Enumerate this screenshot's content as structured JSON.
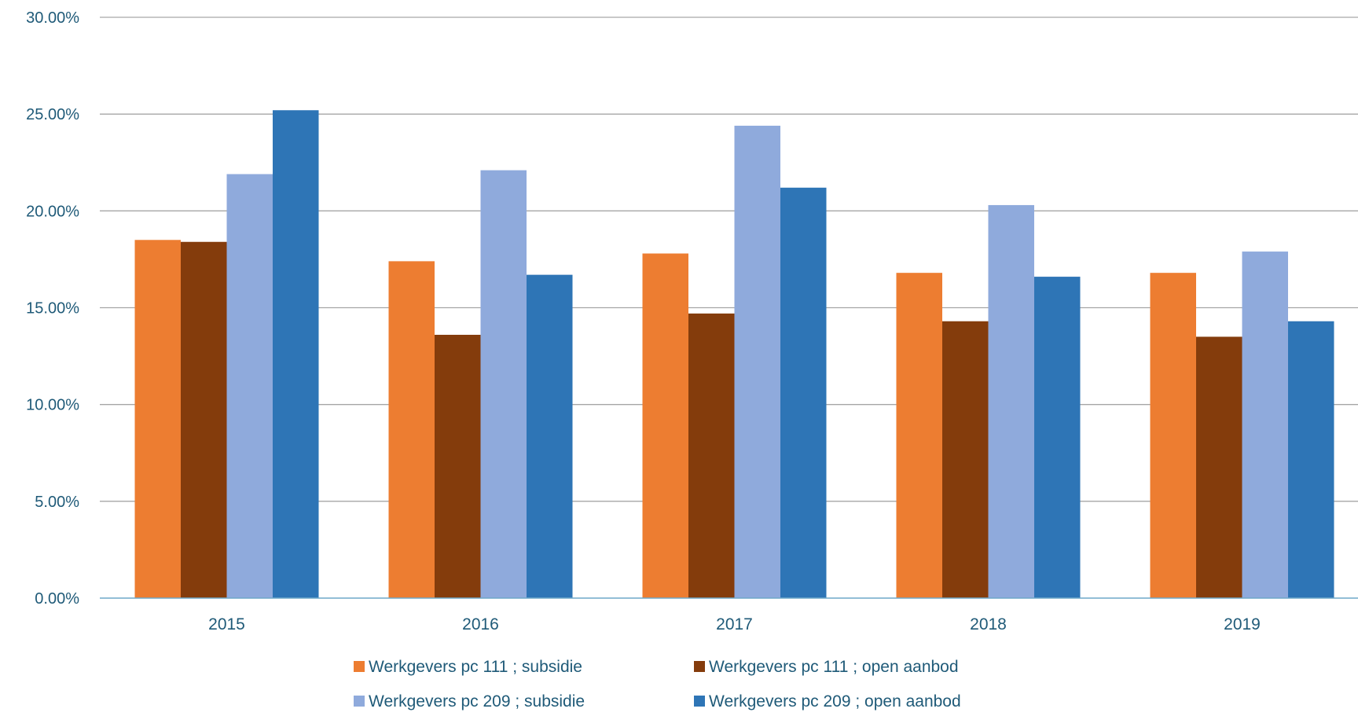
{
  "chart_data": {
    "type": "bar",
    "categories": [
      "2015",
      "2016",
      "2017",
      "2018",
      "2019"
    ],
    "ylim": [
      0,
      30
    ],
    "yticks": [
      0,
      5,
      10,
      15,
      20,
      25,
      30
    ],
    "ytick_labels": [
      "0.00%",
      "5.00%",
      "10.00%",
      "15.00%",
      "20.00%",
      "25.00%",
      "30.00%"
    ],
    "grid": true,
    "legend": "bottom",
    "series": [
      {
        "name": "Werkgevers pc 111 ; subsidie",
        "color": "#ED7D31",
        "values": [
          18.5,
          17.4,
          17.8,
          16.8,
          16.8
        ]
      },
      {
        "name": "Werkgevers pc 111 ; open aanbod",
        "color": "#843C0C",
        "values": [
          18.4,
          13.6,
          14.7,
          14.3,
          13.5
        ]
      },
      {
        "name": "Werkgevers pc 209 ; subsidie",
        "color": "#8FAADC",
        "values": [
          21.9,
          22.1,
          24.4,
          20.3,
          17.9
        ]
      },
      {
        "name": "Werkgevers pc 209 ; open aanbod",
        "color": "#2E75B6",
        "values": [
          25.2,
          16.7,
          21.2,
          16.6,
          14.3
        ]
      }
    ]
  },
  "colors": {
    "text": "#1F5A78",
    "grid": "#A6A6A6",
    "axis": "#6FA8C8",
    "background": "#FFFFFF"
  }
}
